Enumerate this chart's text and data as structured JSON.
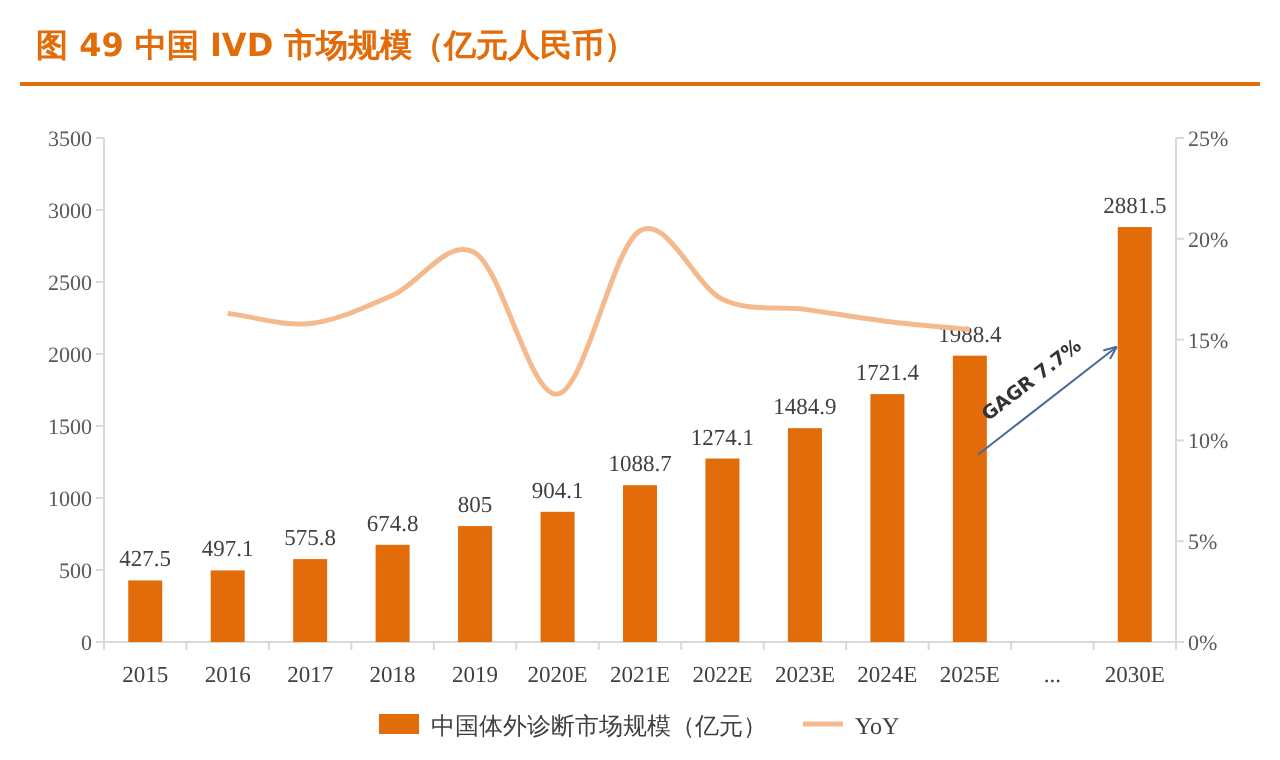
{
  "chart_data": {
    "type": "bar",
    "title": "图 49 中国 IVD 市场规模（亿元人民币）",
    "categories": [
      "2015",
      "2016",
      "2017",
      "2018",
      "2019",
      "2020E",
      "2021E",
      "2022E",
      "2023E",
      "2024E",
      "2025E",
      "...",
      "2030E"
    ],
    "series": [
      {
        "name": "中国体外诊断市场规模（亿元）",
        "color": "#e36c0a",
        "values": [
          427.5,
          497.1,
          575.8,
          674.8,
          805,
          904.1,
          1088.7,
          1274.1,
          1484.9,
          1721.4,
          1988.4,
          null,
          2881.5
        ],
        "value_labels": [
          "427.5",
          "497.1",
          "575.8",
          "674.8",
          "805",
          "904.1",
          "1088.7",
          "1274.1",
          "1484.9",
          "1721.4",
          "1988.4",
          null,
          "2881.5"
        ]
      },
      {
        "name": "YoY",
        "type": "line",
        "axis": "y2",
        "color": "#f4b98c",
        "values": [
          null,
          16.3,
          15.8,
          17.2,
          19.3,
          12.3,
          20.4,
          17.0,
          16.5,
          15.9,
          15.5,
          null,
          null
        ]
      }
    ],
    "ylim": [
      0,
      3500
    ],
    "yticks": [
      0,
      500,
      1000,
      1500,
      2000,
      2500,
      3000,
      3500
    ],
    "y2lim": [
      0,
      25
    ],
    "y2ticks": [
      {
        "value": 0,
        "label": "0%"
      },
      {
        "value": 5,
        "label": "5%"
      },
      {
        "value": 10,
        "label": "10%"
      },
      {
        "value": 15,
        "label": "15%"
      },
      {
        "value": 20,
        "label": "20%"
      },
      {
        "value": 25,
        "label": "25%"
      }
    ],
    "annotations": [
      "GAGR 7.7%"
    ],
    "legend": "bottom",
    "grid": false
  }
}
